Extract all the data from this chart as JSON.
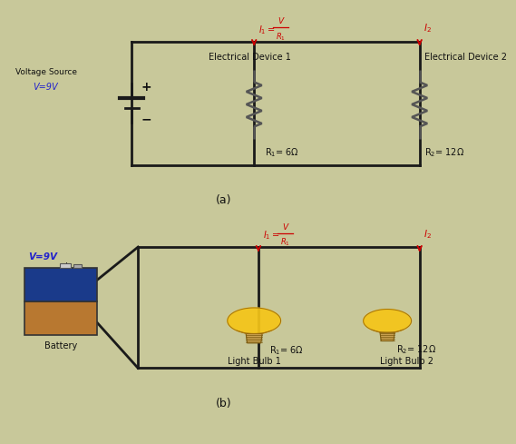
{
  "bg_color": "#c8c89a",
  "line_color": "#1a1a1a",
  "red_color": "#cc0000",
  "blue_color": "#2222cc",
  "black_color": "#111111",
  "gray_color": "#555555",
  "label_a": "(a)",
  "label_b": "(b)",
  "panel_a": {
    "voltage_source_label": "Voltage Source",
    "voltage_label": "V=9V",
    "device1_label": "Electrical Device 1",
    "device2_label": "Electrical Device 2",
    "r1_label": "R$_1$= 6Ω",
    "r2_label": "R$_2$= 12Ω"
  },
  "panel_b": {
    "voltage_label": "V=9V",
    "battery_label": "Battery",
    "r1_label": "R$_1$= 6Ω",
    "r2_label": "R$_2$= 12Ω",
    "bulb1_label": "Light Bulb 1",
    "bulb2_label": "Light Bulb 2"
  },
  "lw_wire": 2.0,
  "bulb_color_globe": "#f5c518",
  "bulb_color_base": "#c8a050",
  "battery_blue": "#1a3a8a",
  "battery_tan": "#b87830"
}
